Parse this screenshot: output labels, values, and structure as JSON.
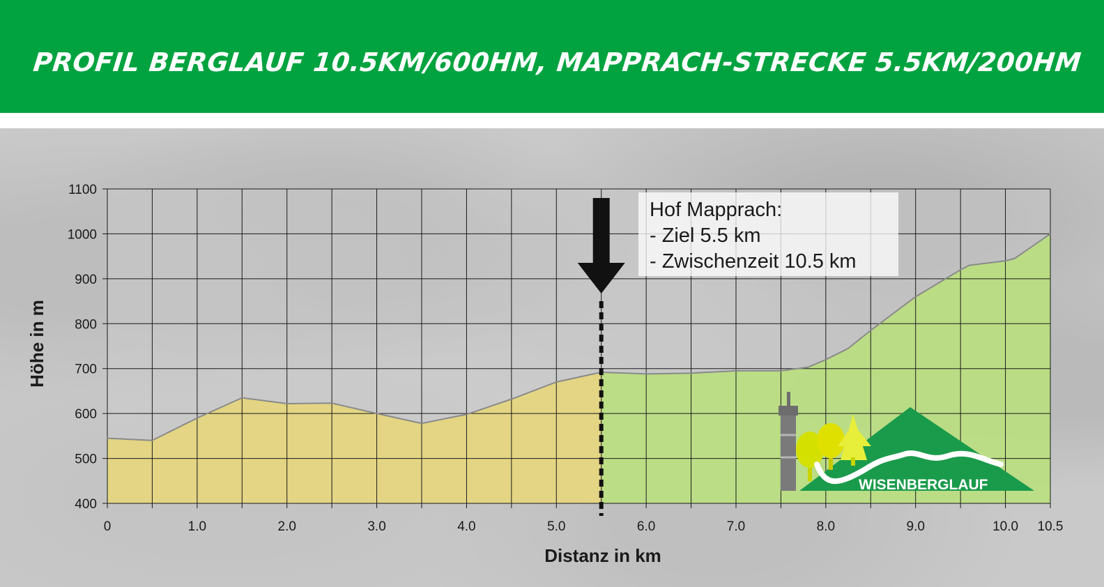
{
  "header": {
    "title": "PROFIL BERGLAUF 10.5KM/600HM, MAPPRACH-STRECKE 5.5KM/200HM"
  },
  "colors": {
    "header_green": "#00a33f",
    "fill_first_section": "#e7d778",
    "fill_second_section": "#b9e07a",
    "profile_line": "#8a8a8a",
    "grid": "#1a1a1a",
    "logo_green": "#1a9b4b"
  },
  "chart_data": {
    "type": "area",
    "xlabel": "Distanz in km",
    "ylabel": "Höhe in m",
    "xlim": [
      0,
      10.5
    ],
    "ylim": [
      400,
      1100
    ],
    "x_ticks": [
      0,
      0.5,
      1.0,
      1.5,
      2.0,
      2.5,
      3.0,
      3.5,
      4.0,
      4.5,
      5.0,
      5.5,
      6.0,
      6.5,
      7.0,
      7.5,
      8.0,
      8.5,
      9.0,
      9.5,
      10.0,
      10.5
    ],
    "x_tick_labels": [
      "0",
      "",
      "1.0",
      "",
      "2.0",
      "",
      "3.0",
      "",
      "4.0",
      "",
      "5.0",
      "",
      "6.0",
      "",
      "7.0",
      "",
      "8.0",
      "",
      "9.0",
      "",
      "10.0",
      "10.5"
    ],
    "y_ticks": [
      400,
      500,
      600,
      700,
      800,
      900,
      1000,
      1100
    ],
    "y_tick_labels": [
      "400",
      "500",
      "600",
      "700",
      "800",
      "900",
      "1000",
      "1100"
    ],
    "grid": true,
    "split_x": 5.5,
    "series": [
      {
        "x": [
          0,
          0.5,
          1.0,
          1.5,
          2.0,
          2.5,
          3.0,
          3.5,
          4.0,
          4.5,
          5.0,
          5.5,
          6.0,
          6.5,
          7.0,
          7.5,
          7.8,
          8.0,
          8.25,
          8.5,
          9.0,
          9.5,
          9.6,
          10.0,
          10.1,
          10.5
        ],
        "values": [
          545,
          540,
          590,
          635,
          622,
          623,
          600,
          578,
          598,
          632,
          670,
          692,
          688,
          690,
          695,
          695,
          703,
          720,
          745,
          785,
          860,
          920,
          930,
          940,
          945,
          1000
        ]
      }
    ],
    "annotation": {
      "lines": [
        "Hof Mapprach:",
        "- Ziel 5.5 km",
        "- Zwischenzeit 10.5 km"
      ],
      "arrow_target_x": 5.5
    }
  },
  "logo": {
    "text": "WISENBERGLAUF"
  }
}
